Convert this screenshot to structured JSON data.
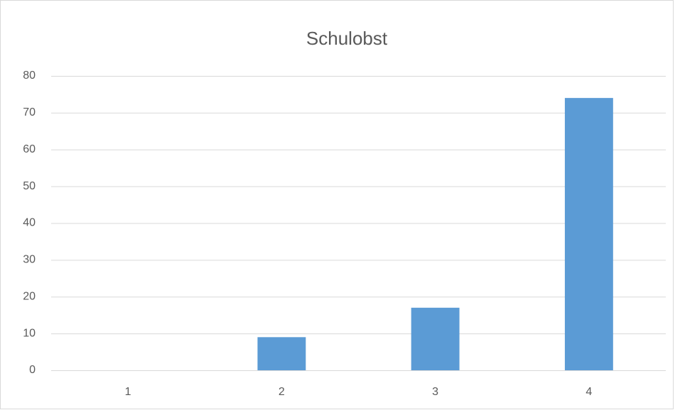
{
  "chart_data": {
    "type": "bar",
    "title": "Schulobst",
    "categories": [
      "1",
      "2",
      "3",
      "4"
    ],
    "values": [
      0,
      9,
      17,
      74
    ],
    "color": "#5b9bd5",
    "ylim": [
      0,
      80
    ],
    "yticks": [
      0,
      10,
      20,
      30,
      40,
      50,
      60,
      70,
      80
    ],
    "grid": true
  }
}
